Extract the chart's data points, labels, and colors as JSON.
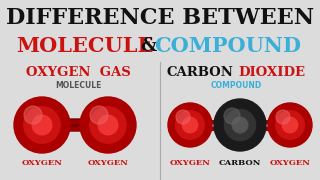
{
  "bg_color": "#dcdcdc",
  "title_line1": "DIFFERENCE BETWEEN",
  "title_line2_part1": "MOLECULE",
  "title_line2_and": "&",
  "title_line2_part2": "COMPOUND",
  "left_title": "OXYGEN  GAS",
  "left_subtitle": "MOLECULE",
  "left_label1": "OXYGEN",
  "left_label2": "OXYGEN",
  "right_title_part1": "CARBON",
  "right_title_part2": "DIOXIDE",
  "right_subtitle": "COMPOUND",
  "right_label1": "OXYGEN",
  "right_label2": "CARBON",
  "right_label3": "OXYGEN",
  "red_color": "#cc1111",
  "blue_color": "#3ab0d8",
  "black_color": "#111111",
  "dark_color": "#111111",
  "atom_red": "#bb0000",
  "atom_bond": "#770000",
  "divider_color": "#aaaaaa"
}
